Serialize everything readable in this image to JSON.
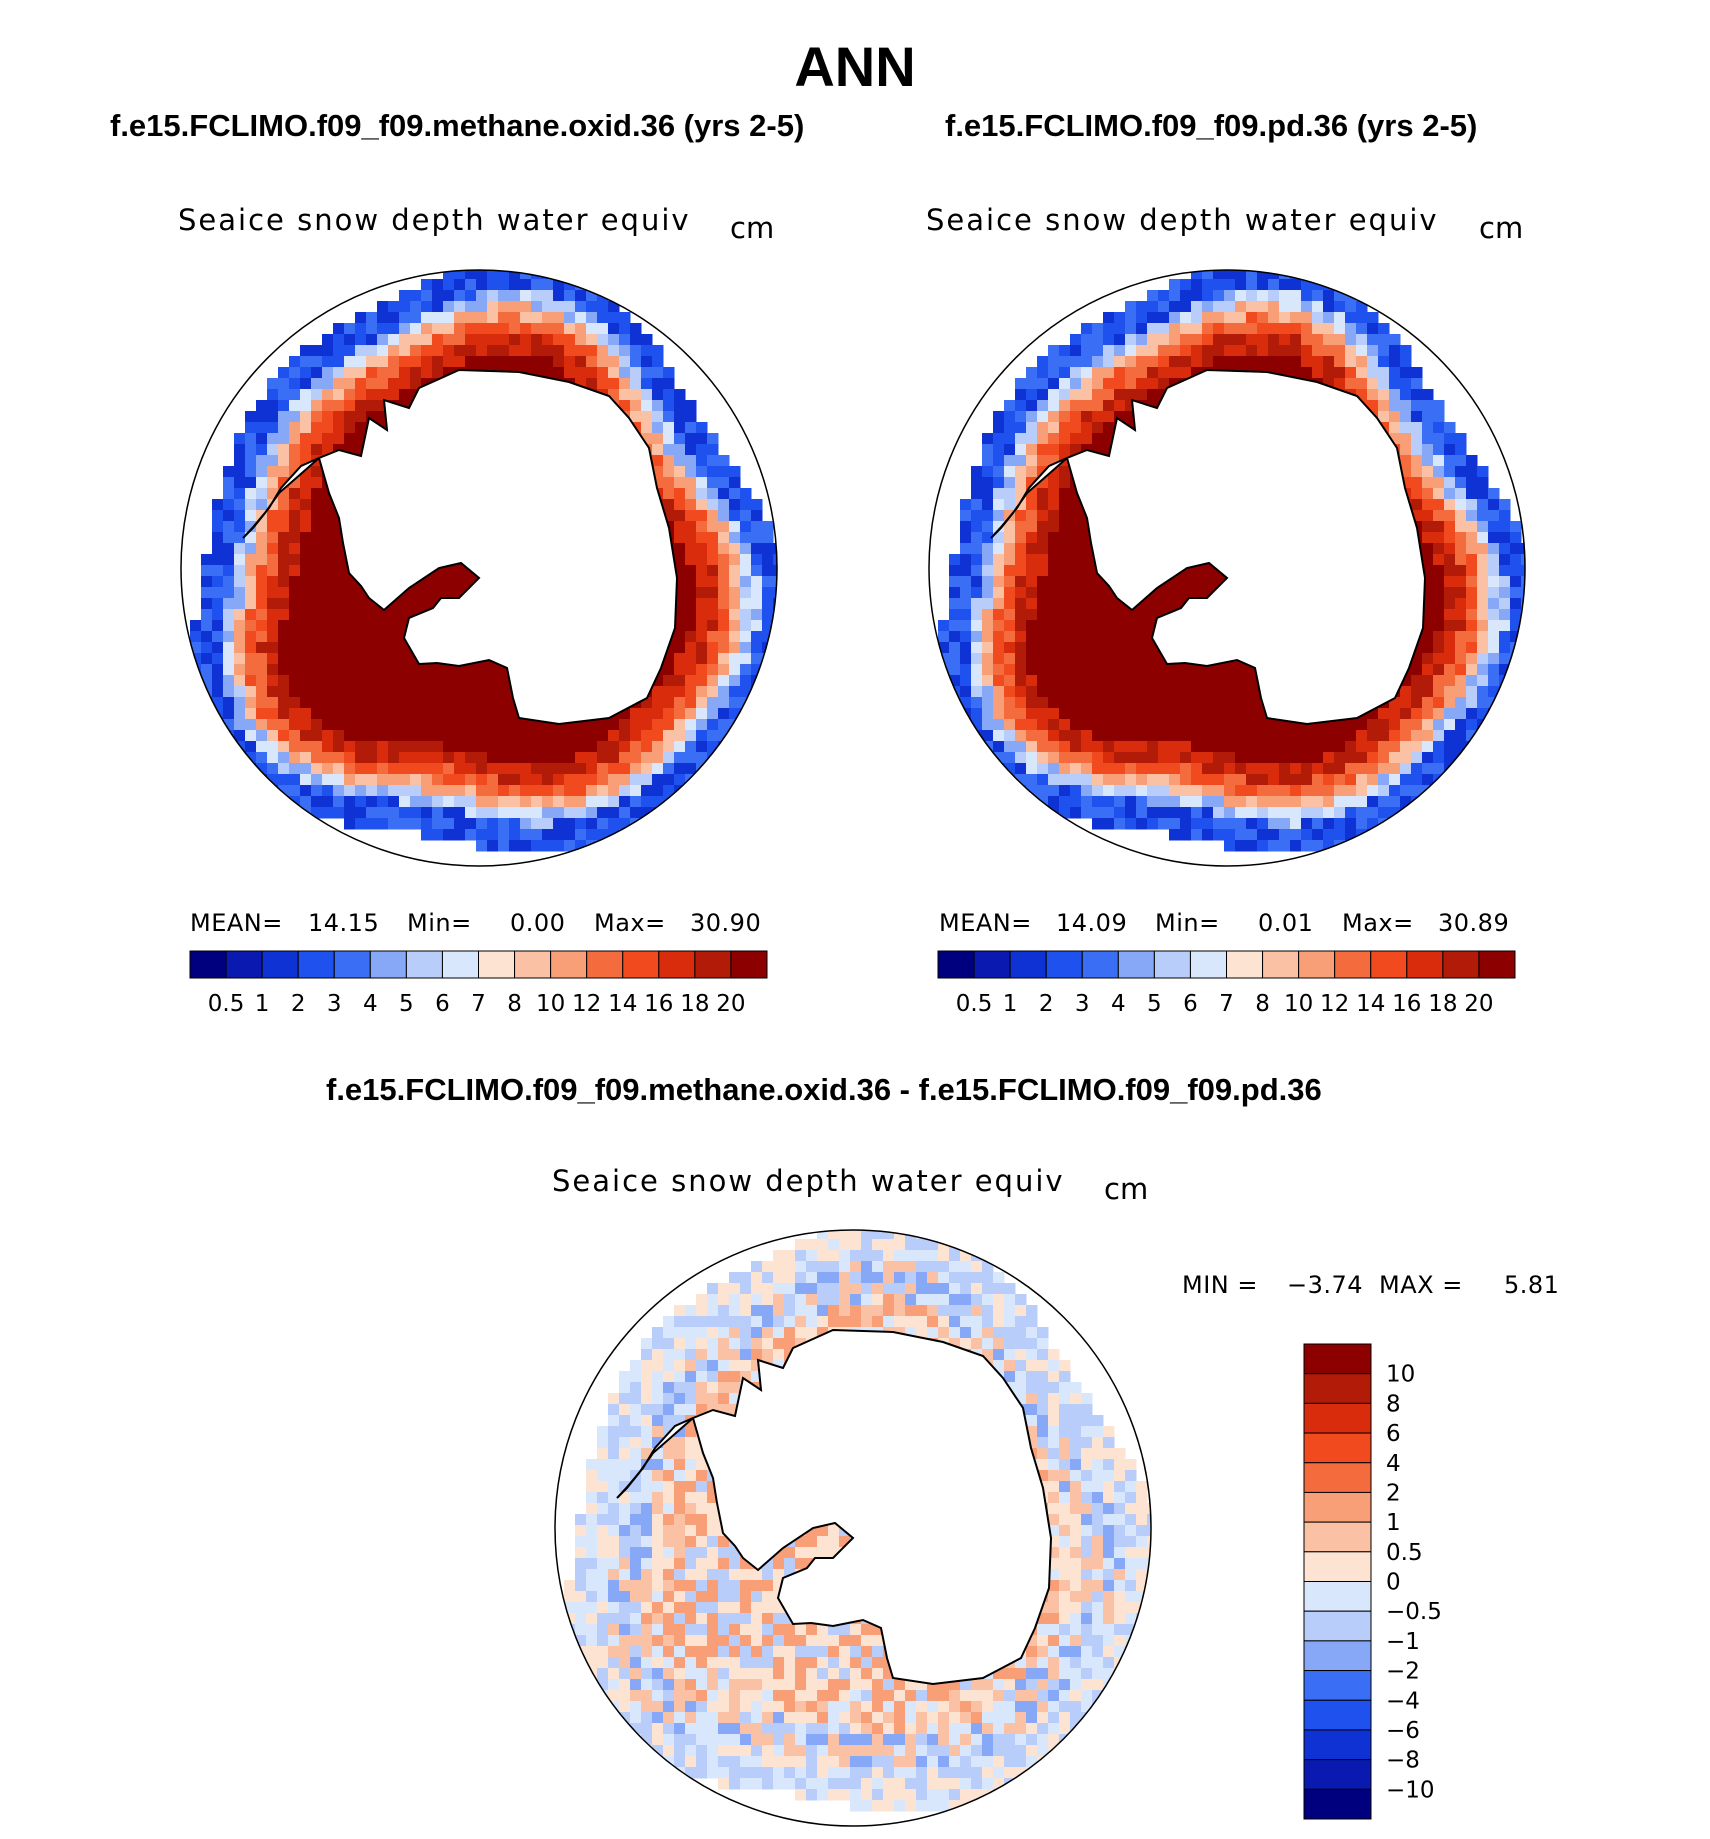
{
  "title": "ANN",
  "panels": [
    {
      "case_title": "f.e15.FCLIMO.f09_f09.methane.oxid.36 (yrs 2-5)",
      "variable": "Seaice snow depth water equiv",
      "units": "cm",
      "stats": {
        "mean_label": "MEAN=",
        "mean": "14.15",
        "min_label": "Min=",
        "min": "0.00",
        "max_label": "Max=",
        "max": "30.90"
      }
    },
    {
      "case_title": "f.e15.FCLIMO.f09_f09.pd.36 (yrs 2-5)",
      "variable": "Seaice snow depth water equiv",
      "units": "cm",
      "stats": {
        "mean_label": "MEAN=",
        "mean": "14.09",
        "min_label": "Min=",
        "min": "0.01",
        "max_label": "Max=",
        "max": "30.89"
      }
    }
  ],
  "diff_panel": {
    "case_title": "f.e15.FCLIMO.f09_f09.methane.oxid.36 - f.e15.FCLIMO.f09_f09.pd.36",
    "variable": "Seaice snow depth water equiv",
    "units": "cm",
    "stats": {
      "min_label": "MIN =",
      "min": "−3.74",
      "max_label": "MAX =",
      "max": "5.81"
    }
  },
  "colorbar_abs": {
    "labels": [
      "0.5",
      "1",
      "2",
      "3",
      "4",
      "5",
      "6",
      "7",
      "8",
      "10",
      "12",
      "14",
      "16",
      "18",
      "20"
    ],
    "colors": [
      "#00007f",
      "#0a1ab0",
      "#0e32d4",
      "#1f51ef",
      "#3a6ff5",
      "#87a8f7",
      "#b8cdfa",
      "#d9e7fc",
      "#fde3d2",
      "#fbc1a4",
      "#f89f78",
      "#f46c3e",
      "#f24a1f",
      "#d92c0c",
      "#b21b08",
      "#8c0000"
    ]
  },
  "colorbar_diff": {
    "labels": [
      "10",
      "8",
      "6",
      "4",
      "2",
      "1",
      "0.5",
      "0",
      "−0.5",
      "−1",
      "−2",
      "−4",
      "−6",
      "−8",
      "−10"
    ],
    "colors": [
      "#8c0000",
      "#b21b08",
      "#d92c0c",
      "#f24a1f",
      "#f46c3e",
      "#f89f78",
      "#fbc1a4",
      "#fde3d2",
      "#d9e7fc",
      "#b8cdfa",
      "#87a8f7",
      "#3a6ff5",
      "#1f51ef",
      "#0e32d4",
      "#0a1ab0",
      "#00007f"
    ]
  }
}
